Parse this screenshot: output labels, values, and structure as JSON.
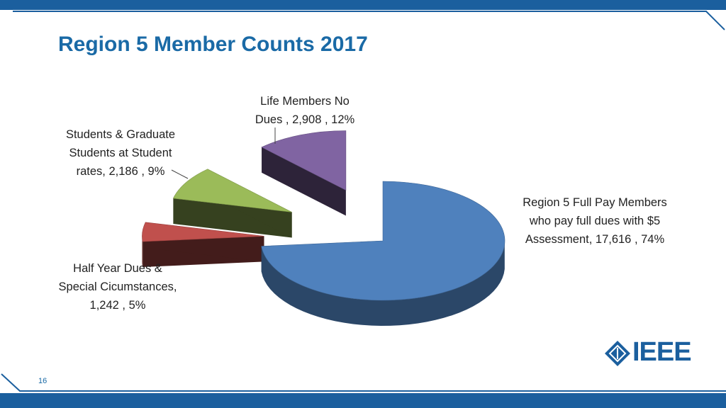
{
  "slide": {
    "title": "Region 5 Member Counts 2017",
    "page_number": "16",
    "logo_text": "IEEE"
  },
  "colors": {
    "bar": "#1b5f9e",
    "title": "#1a6aa6"
  },
  "labels": {
    "life": [
      "Life Members No",
      "Dues , 2,908 , 12%"
    ],
    "students": [
      "Students & Graduate",
      "Students at Student",
      "rates, 2,186 , 9%"
    ],
    "full": [
      "Region 5 Full Pay Members",
      "who pay full dues with $5",
      "Assessment, 17,616 , 74%"
    ],
    "half": [
      "Half Year Dues &",
      "Special Cicumstances,",
      "1,242 , 5%"
    ]
  },
  "chart_data": {
    "type": "pie",
    "title": "",
    "exploded": true,
    "three_d": true,
    "slices": [
      {
        "name": "Region 5 Full Pay Members who pay full dues with $5 Assessment",
        "value": 17616,
        "percent": 74,
        "color": "#4f81bd"
      },
      {
        "name": "Half Year Dues & Special Cicumstances",
        "value": 1242,
        "percent": 5,
        "color": "#c0504d"
      },
      {
        "name": "Students & Graduate Students at Student rates",
        "value": 2186,
        "percent": 9,
        "color": "#9bbb59"
      },
      {
        "name": "Life Members No Dues",
        "value": 2908,
        "percent": 12,
        "color": "#8064a2"
      }
    ]
  }
}
